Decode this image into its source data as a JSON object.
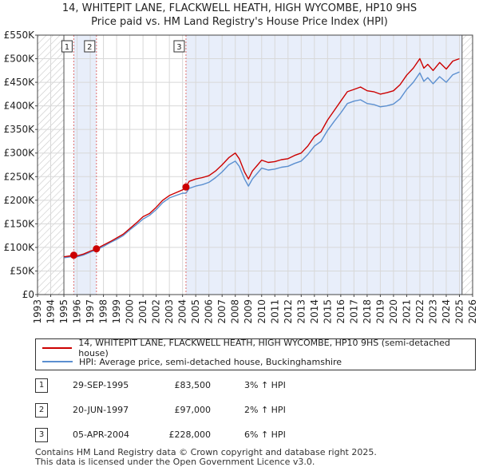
{
  "title_line1": "14, WHITEPIT LANE, FLACKWELL HEATH, HIGH WYCOMBE, HP10 9HS",
  "title_line2": "Price paid vs. HM Land Registry's House Price Index (HPI)",
  "legend": {
    "property_label": "14, WHITEPIT LANE, FLACKWELL HEATH, HIGH WYCOMBE, HP10 9HS (semi-detached house)",
    "hpi_label": "HPI: Average price, semi-detached house, Buckinghamshire"
  },
  "colors": {
    "property_line": "#cc0000",
    "hpi_line": "#5b8fd0",
    "shade": "#e8eefa",
    "marker_line": "#e07070"
  },
  "sales": [
    {
      "num": "1",
      "date": "29-SEP-1995",
      "price": "£83,500",
      "hpi": "3% ↑ HPI"
    },
    {
      "num": "2",
      "date": "20-JUN-1997",
      "price": "£97,000",
      "hpi": "2% ↑ HPI"
    },
    {
      "num": "3",
      "date": "05-APR-2004",
      "price": "£228,000",
      "hpi": "6% ↑ HPI"
    }
  ],
  "footer_line1": "Contains HM Land Registry data © Crown copyright and database right 2025.",
  "footer_line2": "This data is licensed under the Open Government Licence v3.0.",
  "chart_data": {
    "type": "line",
    "title": "Price paid vs. HM Land Registry's House Price Index (HPI)",
    "xlim": [
      1993,
      2026
    ],
    "ylim": [
      0,
      550000
    ],
    "x_ticks": [
      1993,
      1994,
      1995,
      1996,
      1997,
      1998,
      1999,
      2000,
      2001,
      2002,
      2003,
      2004,
      2005,
      2006,
      2007,
      2008,
      2009,
      2010,
      2011,
      2012,
      2013,
      2014,
      2015,
      2016,
      2017,
      2018,
      2019,
      2020,
      2021,
      2022,
      2023,
      2024,
      2025,
      2026
    ],
    "y_ticks": [
      0,
      50000,
      100000,
      150000,
      200000,
      250000,
      300000,
      350000,
      400000,
      450000,
      500000,
      550000
    ],
    "y_tick_labels": [
      "£0",
      "£50K",
      "£100K",
      "£150K",
      "£200K",
      "£250K",
      "£300K",
      "£350K",
      "£400K",
      "£450K",
      "£500K",
      "£550K"
    ],
    "hatched_before": 1995.0,
    "hatched_after": 2025.2,
    "shaded_ranges": [
      [
        1995.75,
        1997.47
      ],
      [
        2004.26,
        2025.2
      ]
    ],
    "sale_markers": [
      {
        "label": "1",
        "x": 1995.75,
        "y": 83500
      },
      {
        "label": "2",
        "x": 1997.47,
        "y": 97000
      },
      {
        "label": "3",
        "x": 2004.26,
        "y": 228000
      }
    ],
    "series": [
      {
        "name": "14, WHITEPIT LANE, FLACKWELL HEATH, HIGH WYCOMBE, HP10 9HS (semi-detached house)",
        "x": [
          1995.0,
          1995.5,
          1995.75,
          1996.0,
          1996.5,
          1997.0,
          1997.47,
          1998.0,
          1998.5,
          1999.0,
          1999.5,
          2000.0,
          2000.5,
          2001.0,
          2001.5,
          2002.0,
          2002.5,
          2003.0,
          2003.5,
          2004.0,
          2004.26,
          2004.5,
          2005.0,
          2005.5,
          2006.0,
          2006.5,
          2007.0,
          2007.5,
          2008.0,
          2008.3,
          2008.7,
          2009.0,
          2009.3,
          2009.7,
          2010.0,
          2010.5,
          2011.0,
          2011.5,
          2012.0,
          2012.5,
          2013.0,
          2013.5,
          2014.0,
          2014.5,
          2015.0,
          2015.5,
          2016.0,
          2016.5,
          2017.0,
          2017.5,
          2018.0,
          2018.5,
          2019.0,
          2019.5,
          2020.0,
          2020.5,
          2021.0,
          2021.5,
          2022.0,
          2022.3,
          2022.6,
          2023.0,
          2023.5,
          2024.0,
          2024.5,
          2025.0
        ],
        "values": [
          80000,
          82000,
          83500,
          82000,
          86000,
          92000,
          97000,
          105000,
          112000,
          120000,
          128000,
          140000,
          152000,
          165000,
          172000,
          185000,
          200000,
          210000,
          216000,
          222000,
          228000,
          240000,
          245000,
          248000,
          252000,
          262000,
          275000,
          290000,
          300000,
          288000,
          260000,
          245000,
          262000,
          275000,
          285000,
          280000,
          282000,
          286000,
          288000,
          295000,
          300000,
          315000,
          335000,
          345000,
          370000,
          390000,
          410000,
          430000,
          435000,
          440000,
          432000,
          430000,
          425000,
          428000,
          432000,
          445000,
          465000,
          480000,
          500000,
          480000,
          488000,
          475000,
          492000,
          478000,
          495000,
          500000
        ]
      },
      {
        "name": "HPI: Average price, semi-detached house, Buckinghamshire",
        "x": [
          1995.0,
          1995.5,
          1995.75,
          1996.0,
          1996.5,
          1997.0,
          1997.47,
          1998.0,
          1998.5,
          1999.0,
          1999.5,
          2000.0,
          2000.5,
          2001.0,
          2001.5,
          2002.0,
          2002.5,
          2003.0,
          2003.5,
          2004.0,
          2004.26,
          2004.5,
          2005.0,
          2005.5,
          2006.0,
          2006.5,
          2007.0,
          2007.5,
          2008.0,
          2008.3,
          2008.7,
          2009.0,
          2009.3,
          2009.7,
          2010.0,
          2010.5,
          2011.0,
          2011.5,
          2012.0,
          2012.5,
          2013.0,
          2013.5,
          2014.0,
          2014.5,
          2015.0,
          2015.5,
          2016.0,
          2016.5,
          2017.0,
          2017.5,
          2018.0,
          2018.5,
          2019.0,
          2019.5,
          2020.0,
          2020.5,
          2021.0,
          2021.5,
          2022.0,
          2022.3,
          2022.6,
          2023.0,
          2023.5,
          2024.0,
          2024.5,
          2025.0
        ],
        "values": [
          78000,
          80000,
          81000,
          80000,
          84000,
          90000,
          95000,
          102000,
          110000,
          117000,
          125000,
          137000,
          148000,
          160000,
          168000,
          180000,
          195000,
          205000,
          210000,
          215000,
          215000,
          225000,
          230000,
          233000,
          238000,
          248000,
          260000,
          275000,
          283000,
          272000,
          245000,
          230000,
          245000,
          258000,
          268000,
          264000,
          266000,
          270000,
          272000,
          278000,
          283000,
          297000,
          315000,
          325000,
          348000,
          367000,
          385000,
          405000,
          410000,
          413000,
          405000,
          403000,
          398000,
          400000,
          404000,
          415000,
          435000,
          450000,
          470000,
          452000,
          460000,
          447000,
          462000,
          450000,
          466000,
          472000
        ]
      }
    ]
  }
}
